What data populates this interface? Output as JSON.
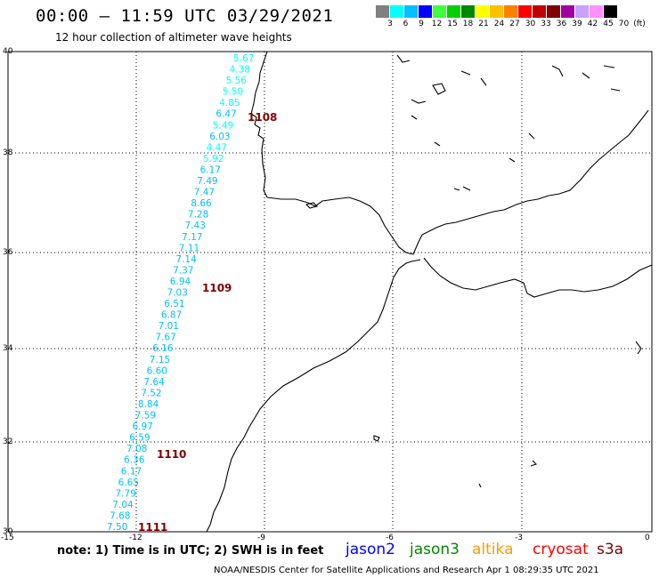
{
  "header": {
    "title": "00:00 – 11:59 UTC 03/29/2021",
    "subtitle": "12 hour collection of altimeter wave heights"
  },
  "color_scale": {
    "colors": [
      "#808080",
      "#00ffff",
      "#00c0ff",
      "#0000ff",
      "#40ff40",
      "#00d000",
      "#008800",
      "#ffff00",
      "#ffc000",
      "#ff8000",
      "#ff0000",
      "#c00000",
      "#800000",
      "#a000a0",
      "#c8a0ff",
      "#ff90ff",
      "#000000"
    ],
    "labels": [
      "3",
      "6",
      "9",
      "12",
      "15",
      "18",
      "21",
      "24",
      "27",
      "30",
      "33",
      "36",
      "39",
      "42",
      "45",
      "70",
      "(ft)"
    ]
  },
  "axes": {
    "y_ticks": [
      "40",
      "38",
      "36",
      "34",
      "32",
      "30"
    ],
    "x_ticks": [
      "-15",
      "-12",
      "-9",
      "-6",
      "-3",
      "0"
    ]
  },
  "wave_heights": [
    {
      "v": "5.67",
      "c": "#00ffff"
    },
    {
      "v": "4.38",
      "c": "#00ffff"
    },
    {
      "v": "5.56",
      "c": "#00ffff"
    },
    {
      "v": "5.50",
      "c": "#00ffff"
    },
    {
      "v": "4.85",
      "c": "#00ffff"
    },
    {
      "v": "6.47",
      "c": "#00c0ff"
    },
    {
      "v": "5.49",
      "c": "#00ffff"
    },
    {
      "v": "6.03",
      "c": "#00c0ff"
    },
    {
      "v": "4.47",
      "c": "#00ffff"
    },
    {
      "v": "5.92",
      "c": "#00ffff"
    },
    {
      "v": "6.17",
      "c": "#00c0ff"
    },
    {
      "v": "7.49",
      "c": "#00c0ff"
    },
    {
      "v": "7.47",
      "c": "#00c0ff"
    },
    {
      "v": "8.66",
      "c": "#00c0ff"
    },
    {
      "v": "7.28",
      "c": "#00c0ff"
    },
    {
      "v": "7.43",
      "c": "#00c0ff"
    },
    {
      "v": "7.17",
      "c": "#00c0ff"
    },
    {
      "v": "7.11",
      "c": "#00c0ff"
    },
    {
      "v": "7.14",
      "c": "#00c0ff"
    },
    {
      "v": "7.37",
      "c": "#00c0ff"
    },
    {
      "v": "6.94",
      "c": "#00c0ff"
    },
    {
      "v": "7.03",
      "c": "#00c0ff"
    },
    {
      "v": "6.51",
      "c": "#00c0ff"
    },
    {
      "v": "6.87",
      "c": "#00c0ff"
    },
    {
      "v": "7.01",
      "c": "#00c0ff"
    },
    {
      "v": "7.67",
      "c": "#00c0ff"
    },
    {
      "v": "6.16",
      "c": "#00c0ff"
    },
    {
      "v": "7.15",
      "c": "#00c0ff"
    },
    {
      "v": "6.60",
      "c": "#00c0ff"
    },
    {
      "v": "7.64",
      "c": "#00c0ff"
    },
    {
      "v": "7.52",
      "c": "#00c0ff"
    },
    {
      "v": "8.84",
      "c": "#00c0ff"
    },
    {
      "v": "7.59",
      "c": "#00c0ff"
    },
    {
      "v": "6.97",
      "c": "#00c0ff"
    },
    {
      "v": "6.59",
      "c": "#00c0ff"
    },
    {
      "v": "7.08",
      "c": "#00c0ff"
    },
    {
      "v": "6.36",
      "c": "#00c0ff"
    },
    {
      "v": "6.17",
      "c": "#00c0ff"
    },
    {
      "v": "6.65",
      "c": "#00c0ff"
    },
    {
      "v": "7.79",
      "c": "#00c0ff"
    },
    {
      "v": "7.04",
      "c": "#00c0ff"
    },
    {
      "v": "7.68",
      "c": "#00c0ff"
    },
    {
      "v": "7.50",
      "c": "#00c0ff"
    }
  ],
  "time_labels": [
    "1108",
    "1109",
    "1110",
    "1111"
  ],
  "time_label_color": "#800000",
  "note": "note: 1) Time is in UTC; 2) SWH is in feet",
  "legend": [
    {
      "label": "jason2",
      "color": "#0000ff"
    },
    {
      "label": "jason3",
      "color": "#008800"
    },
    {
      "label": "altika",
      "color": "#ff9900"
    },
    {
      "label": "cryosat",
      "color": "#ff0000"
    },
    {
      "label": "s3a",
      "color": "#800000"
    }
  ],
  "footer": "NOAA/NESDIS Center for Satellite Applications and Research    Apr  1 08:29:35 UTC 2021"
}
